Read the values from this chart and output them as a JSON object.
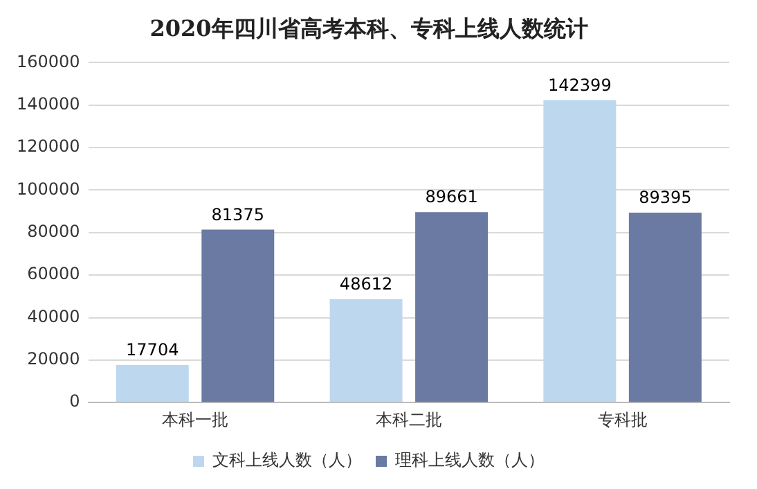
{
  "chart_data": {
    "type": "bar",
    "title": "2020年四川省高考本科、专科上线人数统计",
    "categories": [
      "本科一批",
      "本科二批",
      "专科批"
    ],
    "series": [
      {
        "name": "文科上线人数（人）",
        "color": "#bdd7ee",
        "values": [
          17704,
          48612,
          142399
        ]
      },
      {
        "name": "理科上线人数（人）",
        "color": "#6b7aa2",
        "values": [
          81375,
          89661,
          89395
        ]
      }
    ],
    "ylim": [
      0,
      160000
    ],
    "yticks": [
      0,
      20000,
      40000,
      60000,
      80000,
      100000,
      120000,
      140000,
      160000
    ],
    "grid": "y",
    "legend": "bottom",
    "data_labels": true
  }
}
